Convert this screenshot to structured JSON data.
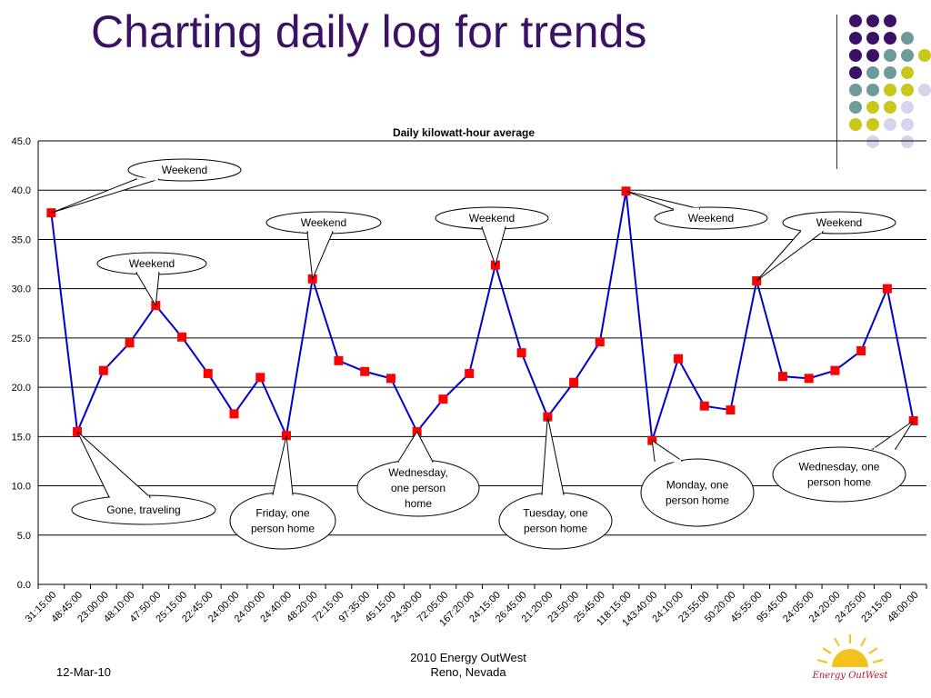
{
  "slide": {
    "title": "Charting daily log for trends",
    "footer_date": "12-Mar-10",
    "footer_org_line1": "2010 Energy OutWest",
    "footer_org_line2": "Reno, Nevada",
    "logo_text": "Energy OutWest"
  },
  "colors": {
    "title": "#3b1166",
    "line": "#0000cc",
    "marker": "#ff0000",
    "dot_purple": "#3b1166",
    "dot_teal": "#6f9a9a",
    "dot_yellow": "#c8c81a",
    "dot_lavender": "#d4d4ea"
  },
  "chart_data": {
    "type": "line",
    "title": "Daily kilowatt-hour average",
    "xlabel": "",
    "ylabel": "",
    "ylim": [
      0,
      45
    ],
    "yticks": [
      "0.0",
      "5.0",
      "10.0",
      "15.0",
      "20.0",
      "25.0",
      "30.0",
      "35.0",
      "40.0",
      "45.0"
    ],
    "grid": true,
    "x": [
      "31:15:00",
      "48:45:00",
      "23:00:00",
      "48:10:00",
      "47:50:00",
      "25:15:00",
      "22:45:00",
      "24:00:00",
      "24:00:00",
      "24:40:00",
      "48:20:00",
      "72:15:00",
      "97:35:00",
      "45:15:00",
      "24:30:00",
      "72:05:00",
      "167:20:00",
      "24:15:00",
      "26:45:00",
      "21:20:00",
      "23:50:00",
      "25:45:00",
      "118:15:00",
      "143:40:00",
      "24:10:00",
      "23:55:00",
      "50:20:00",
      "45:55:00",
      "95:45:00",
      "24:05:00",
      "24:20:00",
      "24:25:00",
      "23:15:00",
      "48:00:00"
    ],
    "series": [
      {
        "values": [
          37.7,
          15.5,
          21.7,
          24.5,
          28.3,
          25.1,
          21.4,
          17.3,
          21.0,
          15.1,
          31.0,
          22.7,
          21.6,
          20.9,
          15.5,
          18.8,
          21.4,
          32.4,
          23.5,
          17.0,
          20.5,
          24.6,
          39.9,
          14.6,
          22.9,
          18.1,
          17.7,
          30.8,
          21.1,
          20.9,
          21.7,
          23.7,
          30.0,
          16.6
        ]
      }
    ],
    "annotations": [
      {
        "text": "Weekend",
        "point": 0
      },
      {
        "text": "Gone, traveling",
        "point": 1
      },
      {
        "text": "Weekend",
        "point": 4
      },
      {
        "text": "Friday, one person home",
        "point": 9
      },
      {
        "text": "Weekend",
        "point": 10
      },
      {
        "text": "Wednesday, one person home",
        "point": 14
      },
      {
        "text": "Weekend",
        "point": 17
      },
      {
        "text": "Tuesday, one person home",
        "point": 19
      },
      {
        "text": "Weekend",
        "point": 22
      },
      {
        "text": "Monday, one person home",
        "point": 23
      },
      {
        "text": "Weekend",
        "point": 27
      },
      {
        "text": "Wednesday, one person home",
        "point": 33
      }
    ]
  }
}
